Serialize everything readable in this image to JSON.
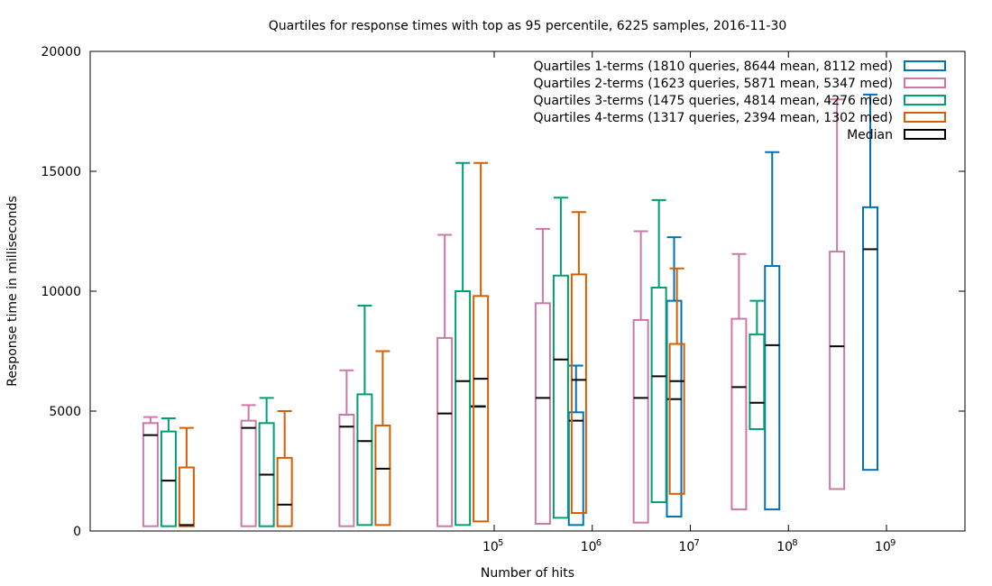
{
  "chart_data": {
    "type": "boxplot",
    "title": "Quartiles for response times with top as 95 percentile, 6225 samples, 2016-11-30",
    "xlabel": "Number of hits",
    "ylabel": "Response time in milliseconds",
    "ylim": [
      0,
      20000
    ],
    "yticks": [
      "0",
      "5000",
      "10000",
      "15000",
      "20000"
    ],
    "xticks": [
      {
        "base": "10",
        "exp": "5",
        "hits": 100000
      },
      {
        "base": "10",
        "exp": "6",
        "hits": 1000000
      },
      {
        "base": "10",
        "exp": "7",
        "hits": 10000000
      },
      {
        "base": "10",
        "exp": "8",
        "hits": 100000000
      },
      {
        "base": "10",
        "exp": "9",
        "hits": 1000000000
      }
    ],
    "legend_position": "top-right",
    "median_legend": {
      "label": "Median",
      "color": "#000000"
    },
    "series": [
      {
        "name": "Quartiles 1-terms (1810 queries, 8644 mean, 8112 med)",
        "color": "#0072b2",
        "boxes": [
          {
            "hits": 100000,
            "min": 5200,
            "q1": 5200,
            "median": 5200,
            "q3": 5200,
            "p95": 5200
          },
          {
            "hits": 1000000,
            "min": 250,
            "q1": 250,
            "median": 4600,
            "q3": 4950,
            "p95": 6900
          },
          {
            "hits": 10000000,
            "min": 600,
            "q1": 600,
            "median": 5500,
            "q3": 9600,
            "p95": 12250
          },
          {
            "hits": 100000000,
            "min": 900,
            "q1": 900,
            "median": 7750,
            "q3": 11050,
            "p95": 15800
          },
          {
            "hits": 1000000000,
            "min": 2550,
            "q1": 2550,
            "median": 11750,
            "q3": 13500,
            "p95": 18200
          }
        ]
      },
      {
        "name": "Quartiles 2-terms (1623 queries, 5871 mean, 5347 med)",
        "color": "#cc79a7",
        "boxes": [
          {
            "hits": 30,
            "min": 200,
            "q1": 200,
            "median": 4000,
            "q3": 4500,
            "p95": 4750
          },
          {
            "hits": 300,
            "min": 200,
            "q1": 200,
            "median": 4300,
            "q3": 4600,
            "p95": 5250
          },
          {
            "hits": 3000,
            "min": 200,
            "q1": 200,
            "median": 4350,
            "q3": 4850,
            "p95": 6700
          },
          {
            "hits": 30000,
            "min": 200,
            "q1": 200,
            "median": 4900,
            "q3": 8050,
            "p95": 12350
          },
          {
            "hits": 300000,
            "min": 300,
            "q1": 300,
            "median": 5550,
            "q3": 9500,
            "p95": 12600
          },
          {
            "hits": 3000000,
            "min": 350,
            "q1": 350,
            "median": 5550,
            "q3": 8800,
            "p95": 12500
          },
          {
            "hits": 30000000,
            "min": 900,
            "q1": 900,
            "median": 6000,
            "q3": 8850,
            "p95": 11550
          },
          {
            "hits": 300000000,
            "min": 1750,
            "q1": 1750,
            "median": 7700,
            "q3": 11650,
            "p95": 18000
          }
        ]
      },
      {
        "name": "Quartiles 3-terms (1475 queries, 4814 mean, 4276 med)",
        "color": "#009e73",
        "boxes": [
          {
            "hits": 30,
            "min": 200,
            "q1": 200,
            "median": 2100,
            "q3": 4150,
            "p95": 4700
          },
          {
            "hits": 300,
            "min": 200,
            "q1": 200,
            "median": 2350,
            "q3": 4500,
            "p95": 5550
          },
          {
            "hits": 3000,
            "min": 250,
            "q1": 250,
            "median": 3750,
            "q3": 5700,
            "p95": 9400
          },
          {
            "hits": 30000,
            "min": 250,
            "q1": 250,
            "median": 6250,
            "q3": 10000,
            "p95": 15350
          },
          {
            "hits": 300000,
            "min": 550,
            "q1": 550,
            "median": 7150,
            "q3": 10650,
            "p95": 13900
          },
          {
            "hits": 3000000,
            "min": 1200,
            "q1": 1200,
            "median": 6450,
            "q3": 10150,
            "p95": 13800
          },
          {
            "hits": 30000000,
            "min": 4250,
            "q1": 4250,
            "median": 5350,
            "q3": 8200,
            "p95": 9600
          }
        ]
      },
      {
        "name": "Quartiles 4-terms (1317 queries, 2394 mean, 1302 med)",
        "color": "#d55e00",
        "boxes": [
          {
            "hits": 30,
            "min": 200,
            "q1": 200,
            "median": 250,
            "q3": 2650,
            "p95": 4300
          },
          {
            "hits": 300,
            "min": 200,
            "q1": 200,
            "median": 1100,
            "q3": 3050,
            "p95": 5000
          },
          {
            "hits": 3000,
            "min": 250,
            "q1": 250,
            "median": 2600,
            "q3": 4400,
            "p95": 7500
          },
          {
            "hits": 30000,
            "min": 400,
            "q1": 400,
            "median": 6350,
            "q3": 9800,
            "p95": 15350
          },
          {
            "hits": 300000,
            "min": 750,
            "q1": 750,
            "median": 6300,
            "q3": 10700,
            "p95": 13300
          },
          {
            "hits": 3000000,
            "min": 1550,
            "q1": 1550,
            "median": 6250,
            "q3": 7800,
            "p95": 10950
          }
        ]
      }
    ]
  }
}
